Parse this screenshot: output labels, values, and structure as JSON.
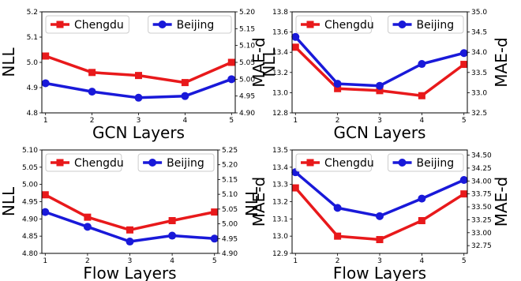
{
  "colors": {
    "chengdu": "#e8191b",
    "beijing": "#1919d9"
  },
  "chart_data": [
    {
      "type": "line",
      "x": [
        1,
        2,
        3,
        4,
        5
      ],
      "xlabel": "GCN Layers",
      "ylabel_left": "NLL",
      "ylabel_right": "NLL",
      "ylim_left": [
        4.8,
        5.2
      ],
      "yticks_left": [
        "4.8",
        "4.9",
        "5.0",
        "5.1",
        "5.2"
      ],
      "ylim_right": [
        4.9,
        5.2
      ],
      "yticks_right": [
        "4.90",
        "4.95",
        "5.00",
        "5.05",
        "5.10",
        "5.15",
        "5.20"
      ],
      "legend_position": "top",
      "series": [
        {
          "name": "Chengdu",
          "axis": "left",
          "values": [
            5.025,
            4.96,
            4.948,
            4.92,
            5.0
          ]
        },
        {
          "name": "Beijing",
          "axis": "right",
          "values": [
            4.988,
            4.963,
            4.945,
            4.95,
            5.0
          ]
        }
      ]
    },
    {
      "type": "line",
      "x": [
        1,
        2,
        3,
        4,
        5
      ],
      "xlabel": "GCN Layers",
      "ylabel_left": "MAE-d",
      "ylabel_right": "MAE-d",
      "ylim_left": [
        12.8,
        13.8
      ],
      "yticks_left": [
        "12.8",
        "13.0",
        "13.2",
        "13.4",
        "13.6",
        "13.8"
      ],
      "ylim_right": [
        32.5,
        35.0
      ],
      "yticks_right": [
        "32.5",
        "33.0",
        "33.5",
        "34.0",
        "34.5",
        "35.0"
      ],
      "legend_position": "top",
      "series": [
        {
          "name": "Chengdu",
          "axis": "left",
          "values": [
            13.45,
            13.04,
            13.02,
            12.97,
            13.28
          ]
        },
        {
          "name": "Beijing",
          "axis": "right",
          "values": [
            34.38,
            33.22,
            33.17,
            33.71,
            33.98
          ]
        }
      ]
    },
    {
      "type": "line",
      "x": [
        1,
        2,
        3,
        4,
        5
      ],
      "xlabel": "Flow Layers",
      "ylabel_left": "NLL",
      "ylabel_right": "NLL",
      "ylim_left": [
        4.8,
        5.1
      ],
      "yticks_left": [
        "4.80",
        "4.85",
        "4.90",
        "4.95",
        "5.00",
        "5.05",
        "5.10"
      ],
      "ylim_right": [
        4.9,
        5.25
      ],
      "yticks_right": [
        "4.90",
        "4.95",
        "5.00",
        "5.05",
        "5.10",
        "5.15",
        "5.20",
        "5.25"
      ],
      "legend_position": "top",
      "series": [
        {
          "name": "Chengdu",
          "axis": "left",
          "values": [
            4.97,
            4.905,
            4.868,
            4.895,
            4.92
          ]
        },
        {
          "name": "Beijing",
          "axis": "right",
          "values": [
            5.04,
            4.99,
            4.94,
            4.96,
            4.95
          ]
        }
      ]
    },
    {
      "type": "line",
      "x": [
        1,
        2,
        3,
        4,
        5
      ],
      "xlabel": "Flow Layers",
      "ylabel_left": "MAE-d",
      "ylabel_right": "MAE-d",
      "ylim_left": [
        12.9,
        13.5
      ],
      "yticks_left": [
        "12.9",
        "13.0",
        "13.1",
        "13.2",
        "13.3",
        "13.4",
        "13.5"
      ],
      "ylim_right": [
        32.6,
        34.6
      ],
      "yticks_right": [
        "32.75",
        "33.00",
        "33.25",
        "33.50",
        "33.75",
        "34.00",
        "34.25",
        "34.50"
      ],
      "legend_position": "top",
      "series": [
        {
          "name": "Chengdu",
          "axis": "left",
          "values": [
            13.28,
            13.0,
            12.98,
            13.09,
            13.245
          ]
        },
        {
          "name": "Beijing",
          "axis": "right",
          "values": [
            34.17,
            33.48,
            33.32,
            33.66,
            34.02
          ]
        }
      ]
    }
  ]
}
